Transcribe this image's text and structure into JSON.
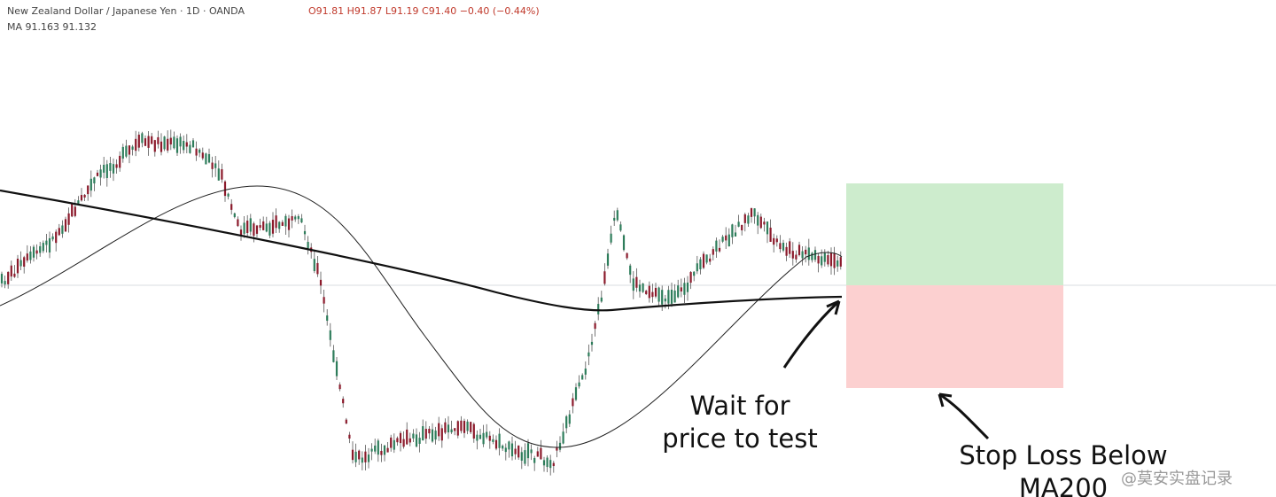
{
  "header": {
    "symbol": "New Zealand Dollar / Japanese Yen · 1D · OANDA",
    "ohlc": "O91.81 H91.87 L91.19 C91.40 −0.40 (−0.44%)",
    "indicator": "MA 91.163 91.132"
  },
  "annotations": {
    "wait": [
      "Wait for",
      "price to test"
    ],
    "stop": [
      "Stop Loss Below",
      "MA200"
    ]
  },
  "watermark": "@莫安实盘记录"
}
